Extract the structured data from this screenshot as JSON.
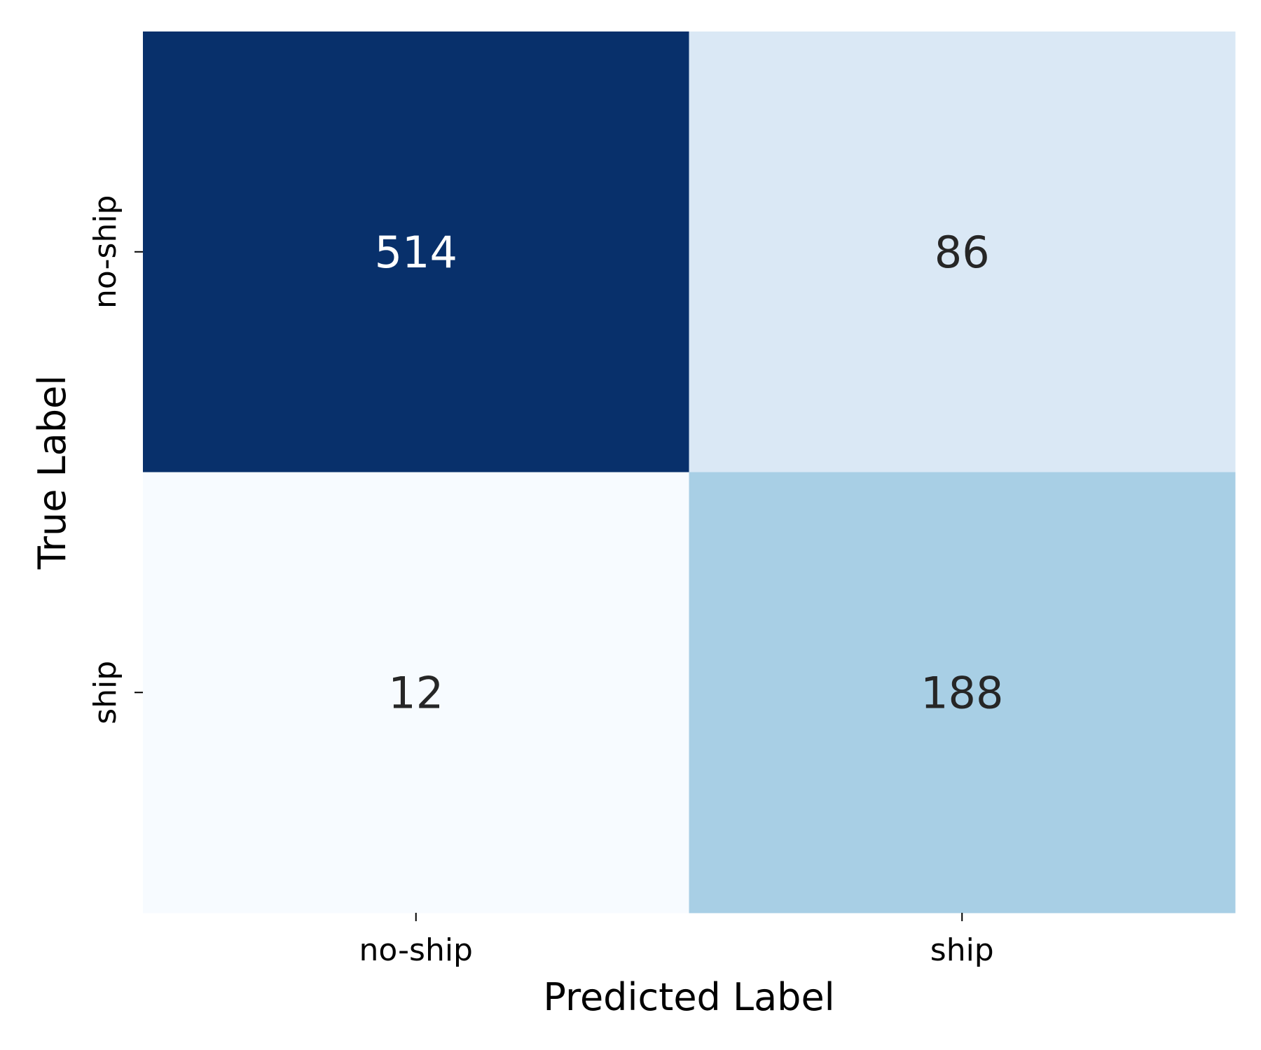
{
  "chart_data": {
    "type": "heatmap",
    "title": "",
    "xlabel": "Predicted Label",
    "ylabel": "True Label",
    "x_categories": [
      "no-ship",
      "ship"
    ],
    "y_categories": [
      "no-ship",
      "ship"
    ],
    "values": [
      [
        514,
        86
      ],
      [
        12,
        188
      ]
    ],
    "colormap": "Blues",
    "cell_colors": [
      [
        "#08306b",
        "#dae8f5"
      ],
      [
        "#f7fbff",
        "#a8cfe5"
      ]
    ],
    "text_colors": [
      [
        "#ffffff",
        "#262626"
      ],
      [
        "#262626",
        "#262626"
      ]
    ],
    "colorbar": false,
    "grid": false
  }
}
